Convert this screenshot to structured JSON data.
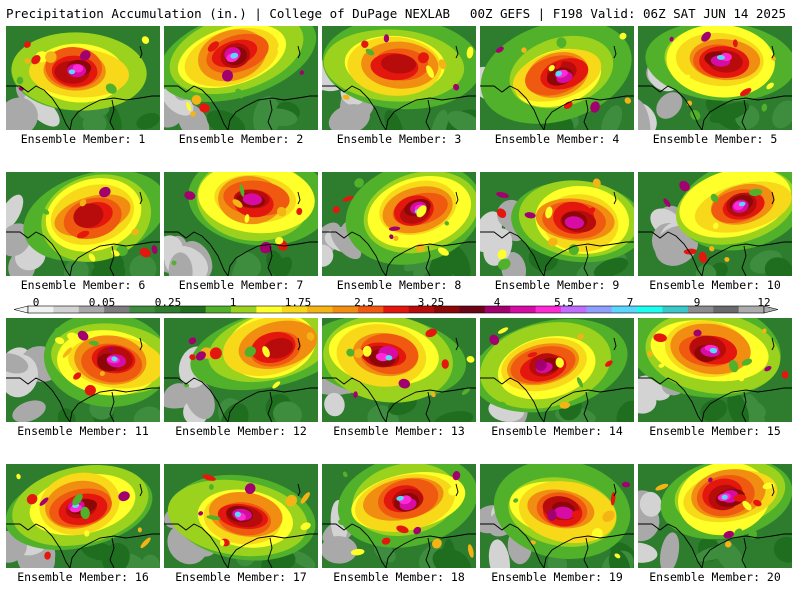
{
  "header": {
    "left_title": "Precipitation Accumulation (in.) | College of DuPage NEXLAB",
    "right_title": "00Z GEFS | F198 Valid: 06Z SAT JUN 14 2025"
  },
  "colors": {
    "scale": [
      "#f2f2f2",
      "#d3d3d3",
      "#a9a9a9",
      "#7c7c7c",
      "#3e8d3e",
      "#2e7d2e",
      "#1f6e1f",
      "#52b12a",
      "#9bd21e",
      "#ffff2a",
      "#f7d91a",
      "#f5b415",
      "#f18e12",
      "#ef5a10",
      "#e4170e",
      "#b80c0c",
      "#8e0707",
      "#6c0417",
      "#a3006f",
      "#d60ca5",
      "#ff2ad6",
      "#c06cff",
      "#8ea0ff",
      "#5ad7ff",
      "#1cffee",
      "#39c9c9",
      "#8c8c8c",
      "#6a6a6a",
      "#acacac"
    ]
  },
  "colorbar": {
    "ticks": [
      "0",
      "0.05",
      "0.25",
      "1",
      "1.75",
      "2.5",
      "3.25",
      "4",
      "5.5",
      "7",
      "9",
      "12"
    ]
  },
  "members": [
    {
      "label": "Ensemble Member: 1",
      "intensity": 4
    },
    {
      "label": "Ensemble Member: 2",
      "intensity": 4
    },
    {
      "label": "Ensemble Member: 3",
      "intensity": 2
    },
    {
      "label": "Ensemble Member: 4",
      "intensity": 4
    },
    {
      "label": "Ensemble Member: 5",
      "intensity": 4
    },
    {
      "label": "Ensemble Member: 6",
      "intensity": 2
    },
    {
      "label": "Ensemble Member: 7",
      "intensity": 3
    },
    {
      "label": "Ensemble Member: 8",
      "intensity": 4
    },
    {
      "label": "Ensemble Member: 9",
      "intensity": 3
    },
    {
      "label": "Ensemble Member: 10",
      "intensity": 4
    },
    {
      "label": "Ensemble Member: 11",
      "intensity": 4
    },
    {
      "label": "Ensemble Member: 12",
      "intensity": 2
    },
    {
      "label": "Ensemble Member: 13",
      "intensity": 4
    },
    {
      "label": "Ensemble Member: 14",
      "intensity": 3
    },
    {
      "label": "Ensemble Member: 15",
      "intensity": 4
    },
    {
      "label": "Ensemble Member: 16",
      "intensity": 4
    },
    {
      "label": "Ensemble Member: 17",
      "intensity": 4
    },
    {
      "label": "Ensemble Member: 18",
      "intensity": 4
    },
    {
      "label": "Ensemble Member: 19",
      "intensity": 3
    },
    {
      "label": "Ensemble Member: 20",
      "intensity": 4
    }
  ]
}
